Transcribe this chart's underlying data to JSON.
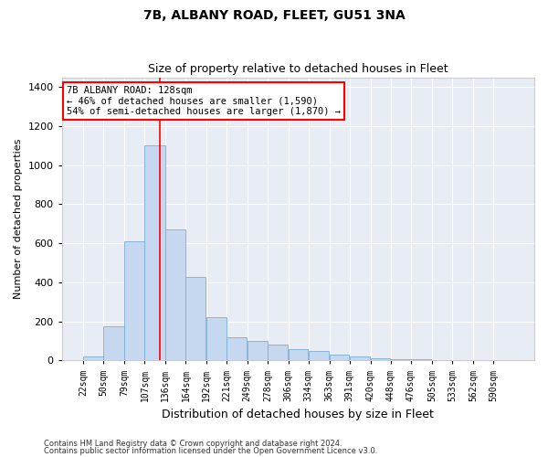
{
  "title": "7B, ALBANY ROAD, FLEET, GU51 3NA",
  "subtitle": "Size of property relative to detached houses in Fleet",
  "xlabel": "Distribution of detached houses by size in Fleet",
  "ylabel": "Number of detached properties",
  "annotation_line1": "7B ALBANY ROAD: 128sqm",
  "annotation_line2": "← 46% of detached houses are smaller (1,590)",
  "annotation_line3": "54% of semi-detached houses are larger (1,870) →",
  "property_size": 128,
  "footer_line1": "Contains HM Land Registry data © Crown copyright and database right 2024.",
  "footer_line2": "Contains public sector information licensed under the Open Government Licence v3.0.",
  "bar_color": "#c5d8f0",
  "bar_edge_color": "#7aadd4",
  "bg_color": "#e8edf5",
  "grid_color": "#ffffff",
  "categories": [
    "22sqm",
    "50sqm",
    "79sqm",
    "107sqm",
    "136sqm",
    "164sqm",
    "192sqm",
    "221sqm",
    "249sqm",
    "278sqm",
    "306sqm",
    "334sqm",
    "363sqm",
    "391sqm",
    "420sqm",
    "448sqm",
    "476sqm",
    "505sqm",
    "533sqm",
    "562sqm",
    "590sqm"
  ],
  "bin_edges": [
    22,
    50,
    79,
    107,
    136,
    164,
    192,
    221,
    249,
    278,
    306,
    334,
    363,
    391,
    420,
    448,
    476,
    505,
    533,
    562,
    590
  ],
  "values": [
    20,
    175,
    610,
    1100,
    670,
    430,
    220,
    120,
    100,
    80,
    60,
    50,
    30,
    20,
    10,
    5,
    5,
    3,
    2,
    1,
    1
  ],
  "ylim": [
    0,
    1450
  ],
  "yticks": [
    0,
    200,
    400,
    600,
    800,
    1000,
    1200,
    1400
  ],
  "red_line_x": 128,
  "fig_width": 6.0,
  "fig_height": 5.0,
  "dpi": 100
}
